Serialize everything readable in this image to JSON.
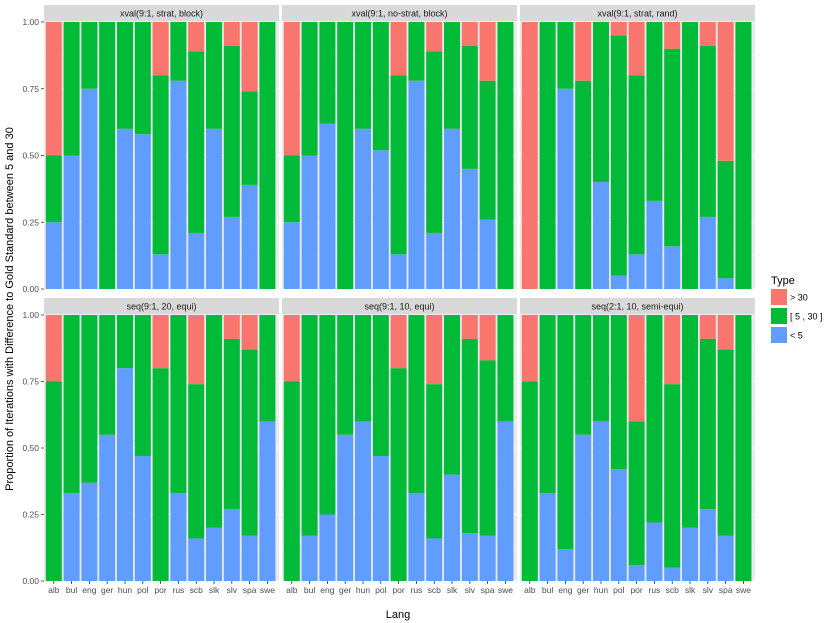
{
  "chart_data": {
    "type": "bar",
    "stacked": true,
    "ylabel": "Proportion of Iterations with Difference to Gold Standard between 5 and 30",
    "xlabel": "Lang",
    "ylim": [
      0,
      1
    ],
    "yticks": [
      "0.00",
      "0.25",
      "0.50",
      "0.75",
      "1.00"
    ],
    "yticks_values": [
      0,
      0.25,
      0.5,
      0.75,
      1.0
    ],
    "categories": [
      "alb",
      "bul",
      "eng",
      "ger",
      "hun",
      "pol",
      "por",
      "rus",
      "scb",
      "slk",
      "slv",
      "spa",
      "swe"
    ],
    "legend": {
      "title": "Type",
      "position": "right",
      "entries": [
        {
          "label": "> 30",
          "color": "#F8766D"
        },
        {
          "label": "[ 5 , 30 ]",
          "color": "#00BA38"
        },
        {
          "label": "< 5",
          "color": "#619CFF"
        }
      ]
    },
    "stack_order": [
      "< 5",
      "[ 5 , 30 ]",
      "> 30"
    ],
    "panels": [
      {
        "title": "xval(9:1, strat, block)",
        "series": [
          {
            "name": "< 5",
            "values": [
              0.25,
              0.5,
              0.75,
              0.0,
              0.6,
              0.58,
              0.13,
              0.78,
              0.21,
              0.6,
              0.27,
              0.39,
              0.0
            ]
          },
          {
            "name": "[ 5 , 30 ]",
            "values": [
              0.25,
              0.5,
              0.25,
              1.0,
              0.4,
              0.42,
              0.67,
              0.22,
              0.68,
              0.4,
              0.64,
              0.35,
              1.0
            ]
          },
          {
            "name": "> 30",
            "values": [
              0.5,
              0.0,
              0.0,
              0.0,
              0.0,
              0.0,
              0.2,
              0.0,
              0.11,
              0.0,
              0.09,
              0.26,
              0.0
            ]
          }
        ]
      },
      {
        "title": "xval(9:1, no-strat, block)",
        "series": [
          {
            "name": "< 5",
            "values": [
              0.25,
              0.5,
              0.62,
              0.0,
              0.6,
              0.52,
              0.13,
              0.78,
              0.21,
              0.6,
              0.45,
              0.26,
              0.0
            ]
          },
          {
            "name": "[ 5 , 30 ]",
            "values": [
              0.25,
              0.5,
              0.38,
              1.0,
              0.4,
              0.48,
              0.67,
              0.22,
              0.68,
              0.4,
              0.46,
              0.52,
              1.0
            ]
          },
          {
            "name": "> 30",
            "values": [
              0.5,
              0.0,
              0.0,
              0.0,
              0.0,
              0.0,
              0.2,
              0.0,
              0.11,
              0.0,
              0.09,
              0.22,
              0.0
            ]
          }
        ]
      },
      {
        "title": "xval(9:1, strat, rand)",
        "series": [
          {
            "name": "< 5",
            "values": [
              0.0,
              0.0,
              0.75,
              0.0,
              0.4,
              0.05,
              0.13,
              0.33,
              0.16,
              0.0,
              0.27,
              0.04,
              0.0
            ]
          },
          {
            "name": "[ 5 , 30 ]",
            "values": [
              0.0,
              1.0,
              0.25,
              0.78,
              0.6,
              0.9,
              0.67,
              0.67,
              0.74,
              1.0,
              0.64,
              0.44,
              1.0
            ]
          },
          {
            "name": "> 30",
            "values": [
              1.0,
              0.0,
              0.0,
              0.22,
              0.0,
              0.05,
              0.2,
              0.0,
              0.1,
              0.0,
              0.09,
              0.52,
              0.0
            ]
          }
        ]
      },
      {
        "title": "seq(9:1, 20, equi)",
        "series": [
          {
            "name": "< 5",
            "values": [
              0.0,
              0.33,
              0.37,
              0.55,
              0.8,
              0.47,
              0.0,
              0.33,
              0.16,
              0.2,
              0.27,
              0.17,
              0.6
            ]
          },
          {
            "name": "[ 5 , 30 ]",
            "values": [
              0.75,
              0.67,
              0.63,
              0.45,
              0.2,
              0.53,
              0.8,
              0.67,
              0.58,
              0.8,
              0.64,
              0.7,
              0.4
            ]
          },
          {
            "name": "> 30",
            "values": [
              0.25,
              0.0,
              0.0,
              0.0,
              0.0,
              0.0,
              0.2,
              0.0,
              0.26,
              0.0,
              0.09,
              0.13,
              0.0
            ]
          }
        ]
      },
      {
        "title": "seq(9:1, 10, equi)",
        "series": [
          {
            "name": "< 5",
            "values": [
              0.0,
              0.17,
              0.25,
              0.55,
              0.6,
              0.47,
              0.0,
              0.33,
              0.16,
              0.4,
              0.18,
              0.17,
              0.6
            ]
          },
          {
            "name": "[ 5 , 30 ]",
            "values": [
              0.75,
              0.83,
              0.75,
              0.45,
              0.4,
              0.53,
              0.8,
              0.67,
              0.58,
              0.6,
              0.73,
              0.66,
              0.4
            ]
          },
          {
            "name": "> 30",
            "values": [
              0.25,
              0.0,
              0.0,
              0.0,
              0.0,
              0.0,
              0.2,
              0.0,
              0.26,
              0.0,
              0.09,
              0.17,
              0.0
            ]
          }
        ]
      },
      {
        "title": "seq(2:1, 10, semi-equi)",
        "series": [
          {
            "name": "< 5",
            "values": [
              0.0,
              0.33,
              0.12,
              0.55,
              0.6,
              0.42,
              0.06,
              0.22,
              0.05,
              0.2,
              0.27,
              0.17,
              0.0
            ]
          },
          {
            "name": "[ 5 , 30 ]",
            "values": [
              0.75,
              0.67,
              0.88,
              0.45,
              0.4,
              0.58,
              0.54,
              0.78,
              0.69,
              0.8,
              0.64,
              0.7,
              1.0
            ]
          },
          {
            "name": "> 30",
            "values": [
              0.25,
              0.0,
              0.0,
              0.0,
              0.0,
              0.0,
              0.4,
              0.0,
              0.26,
              0.0,
              0.09,
              0.13,
              0.0
            ]
          }
        ]
      }
    ]
  }
}
